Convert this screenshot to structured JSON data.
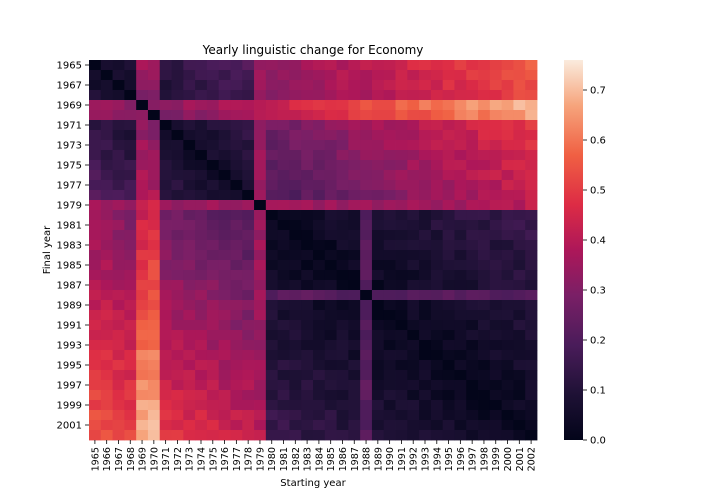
{
  "chart_data": {
    "type": "heatmap",
    "title": "Yearly linguistic change for Economy",
    "xlabel": "Starting year",
    "ylabel": "Final year",
    "x_categories": [
      "1965",
      "1966",
      "1967",
      "1968",
      "1969",
      "1970",
      "1971",
      "1972",
      "1973",
      "1974",
      "1975",
      "1976",
      "1977",
      "1978",
      "1979",
      "1980",
      "1981",
      "1982",
      "1983",
      "1984",
      "1985",
      "1986",
      "1987",
      "1988",
      "1989",
      "1990",
      "1991",
      "1992",
      "1993",
      "1994",
      "1995",
      "1996",
      "1997",
      "1998",
      "1999",
      "2000",
      "2001",
      "2002"
    ],
    "x_tick_labels": [
      "1965",
      "1966",
      "1967",
      "1968",
      "1969",
      "1970",
      "1971",
      "1972",
      "1973",
      "1974",
      "1975",
      "1976",
      "1977",
      "1978",
      "1979",
      "1980",
      "1981",
      "1982",
      "1983",
      "1984",
      "1985",
      "1986",
      "1987",
      "1988",
      "1989",
      "1990",
      "1991",
      "1992",
      "1993",
      "1994",
      "1995",
      "1996",
      "1997",
      "1998",
      "1999",
      "2000",
      "2001",
      "2002"
    ],
    "y_categories": [
      "1965",
      "1966",
      "1967",
      "1968",
      "1969",
      "1970",
      "1971",
      "1972",
      "1973",
      "1974",
      "1975",
      "1976",
      "1977",
      "1978",
      "1979",
      "1980",
      "1981",
      "1982",
      "1983",
      "1984",
      "1985",
      "1986",
      "1987",
      "1988",
      "1989",
      "1990",
      "1991",
      "1992",
      "1993",
      "1994",
      "1995",
      "1996",
      "1997",
      "1998",
      "1999",
      "2000",
      "2001",
      "2002"
    ],
    "y_tick_labels": [
      "1965",
      "1967",
      "1969",
      "1971",
      "1973",
      "1975",
      "1977",
      "1979",
      "1981",
      "1983",
      "1985",
      "1987",
      "1989",
      "1991",
      "1993",
      "1995",
      "1997",
      "1999",
      "2001"
    ],
    "colorbar": {
      "min": 0.0,
      "max": 0.76,
      "ticks": [
        "0.0",
        "0.1",
        "0.2",
        "0.3",
        "0.4",
        "0.5",
        "0.6",
        "0.7"
      ]
    },
    "approx_features": {
      "diagonal": 0.0,
      "row_1969_mean": 0.3,
      "row_1969_peaks_at": [
        "1978",
        "1990",
        "1994",
        "1997",
        "2000",
        "2001",
        "2002"
      ],
      "column_1970_bright": true,
      "row_1988_dark_near_diagonal": true
    }
  }
}
